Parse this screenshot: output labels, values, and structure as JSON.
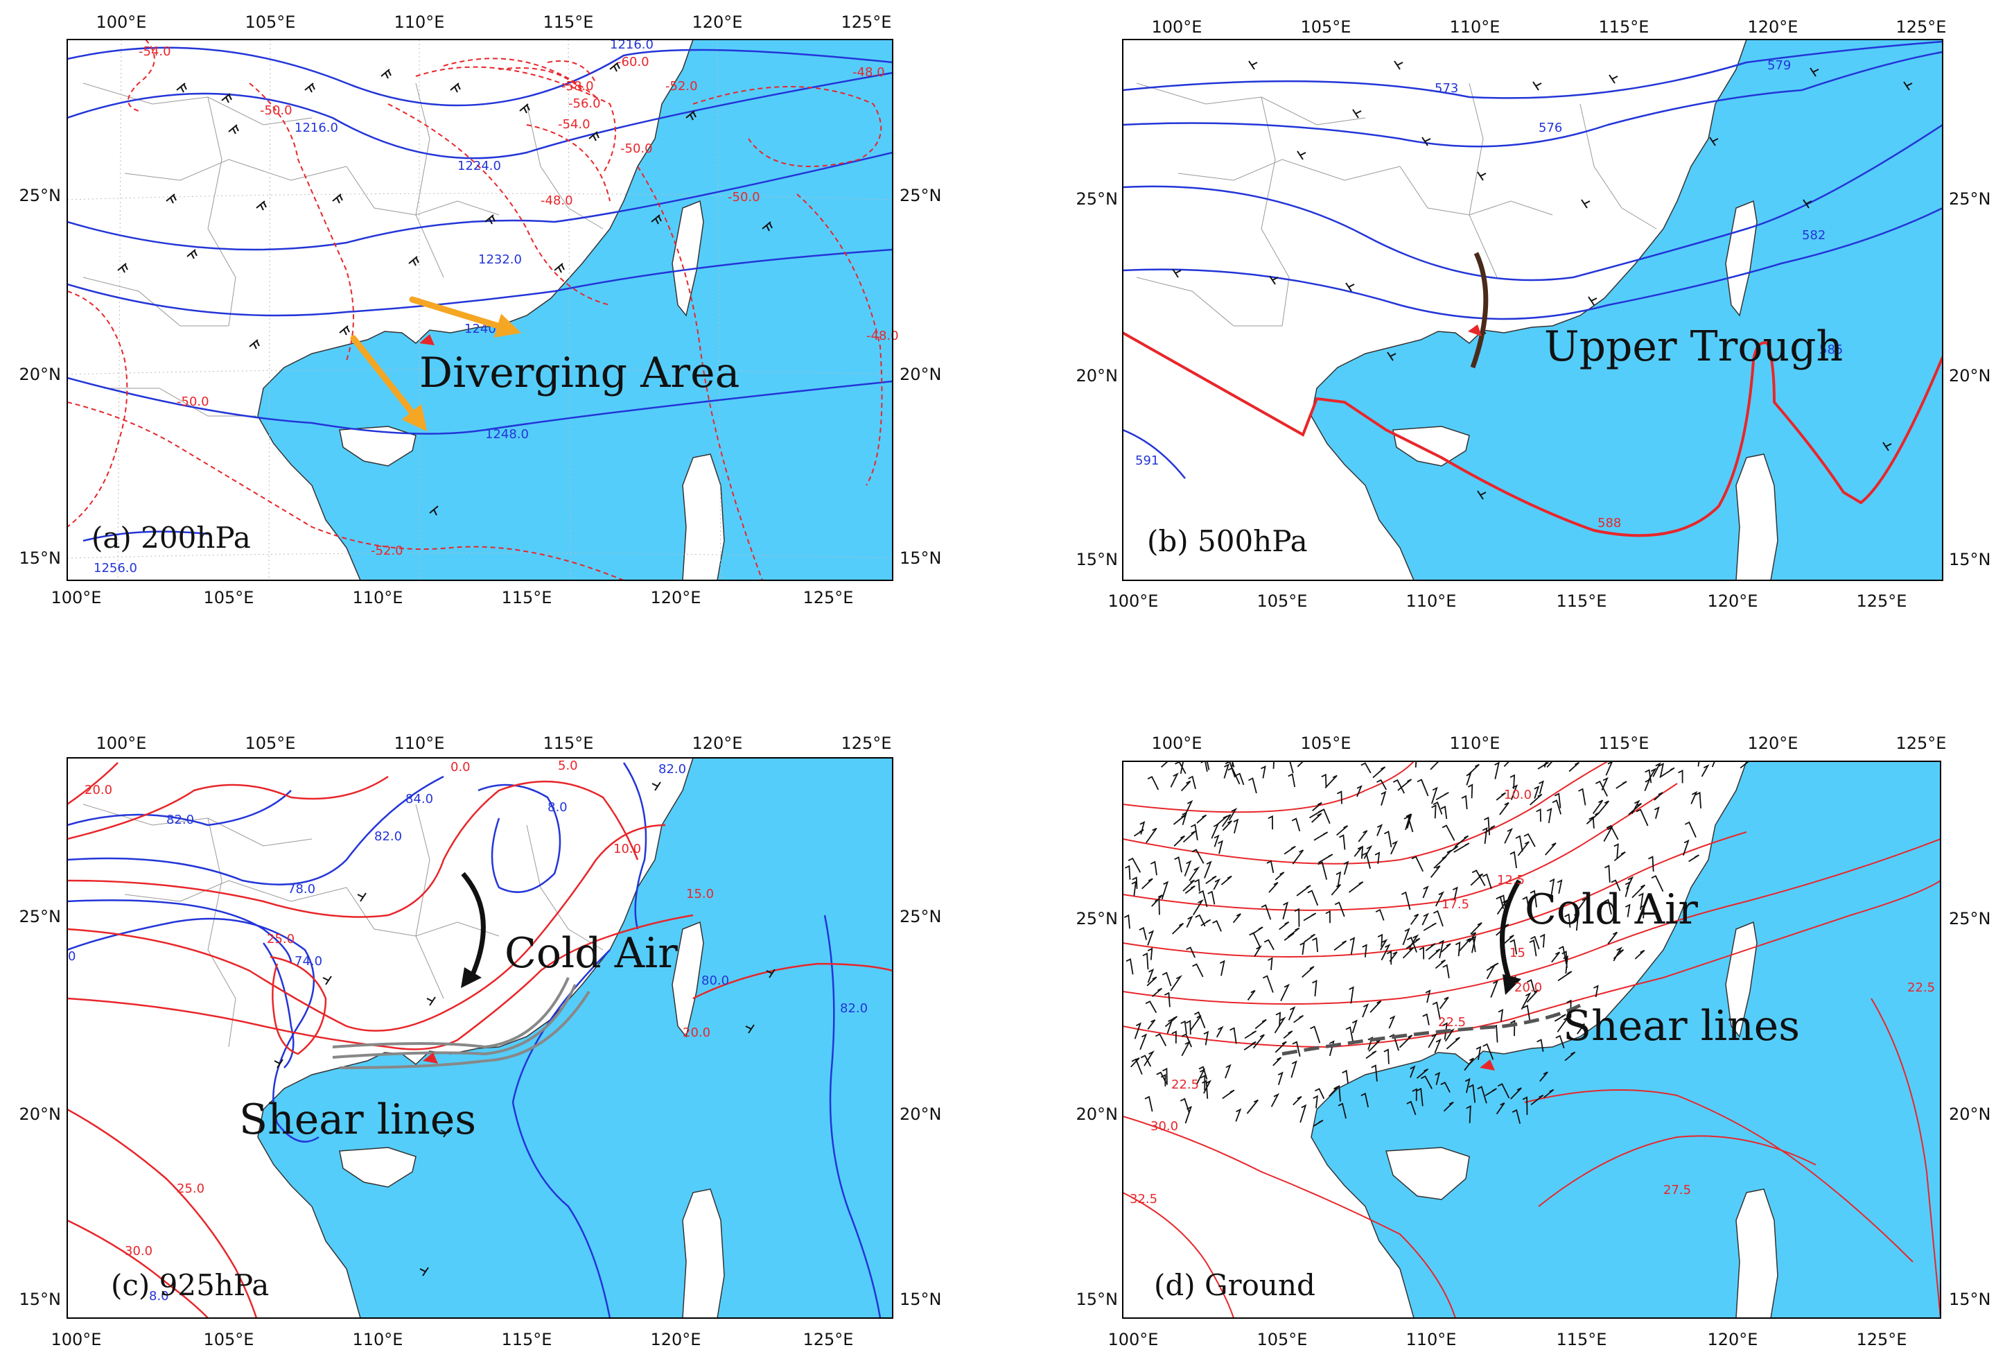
{
  "panels": [
    {
      "id": "a",
      "label": "(a) 200hPa",
      "annotation": "Diverging Area",
      "lon_ticks": [
        "100°E",
        "105°E",
        "110°E",
        "115°E",
        "120°E",
        "125°E"
      ],
      "lat_ticks": [
        "15°N",
        "20°N",
        "25°N"
      ],
      "red_labels": [
        "-54.0",
        "-50.0",
        "-60.0",
        "-58.0",
        "-56.0",
        "-54.0",
        "-52.0",
        "-48.0",
        "-50.0",
        "-48.0",
        "-50.0",
        "-50.0",
        "-52.0",
        "-48.0"
      ],
      "blue_labels": [
        "1216.0",
        "1216.0",
        "1224.0",
        "1232.0",
        "1240.0",
        "1248.0",
        "1256.0"
      ]
    },
    {
      "id": "b",
      "label": "(b) 500hPa",
      "annotation": "Upper Trough",
      "lon_ticks": [
        "100°E",
        "105°E",
        "110°E",
        "115°E",
        "120°E",
        "125°E"
      ],
      "lat_ticks": [
        "15°N",
        "20°N",
        "25°N"
      ],
      "red_labels": [
        "588"
      ],
      "blue_labels": [
        "573",
        "576",
        "579",
        "582",
        "585",
        "591"
      ]
    },
    {
      "id": "c",
      "label": "(c) 925hPa",
      "annotations": [
        "Cold Air",
        "Shear lines"
      ],
      "lon_ticks": [
        "100°E",
        "105°E",
        "110°E",
        "115°E",
        "120°E",
        "125°E"
      ],
      "lat_ticks": [
        "15°N",
        "20°N",
        "25°N"
      ],
      "red_labels": [
        "20.0",
        "0.0",
        "5.0",
        "10.0",
        "15.0",
        "25.0",
        "20.0",
        "25.0",
        "30.0"
      ],
      "blue_labels": [
        "82.0",
        "84.0",
        "82.0",
        "8.0",
        "82.0",
        "78.0",
        "74.0",
        "80.0",
        "82.0",
        "8.0",
        "0"
      ]
    },
    {
      "id": "d",
      "label": "(d) Ground",
      "annotations": [
        "Cold Air",
        "Shear lines"
      ],
      "lon_ticks": [
        "100°E",
        "105°E",
        "110°E",
        "115°E",
        "120°E",
        "125°E"
      ],
      "lat_ticks": [
        "15°N",
        "20°N",
        "25°N"
      ],
      "red_labels": [
        "10.0",
        "12.5",
        "15",
        "17.5",
        "20.0",
        "22.5",
        "22.5",
        "30.0",
        "32.5",
        "27.5",
        "22.5"
      ]
    }
  ],
  "colors": {
    "sea": "#55cdfa",
    "land": "#ffffff",
    "temperature_contour": "#e8262a",
    "height_contour": "#2335d8",
    "arrow": "#f5a623",
    "trough": "#4a2a1a",
    "shear_line": "#888888"
  }
}
